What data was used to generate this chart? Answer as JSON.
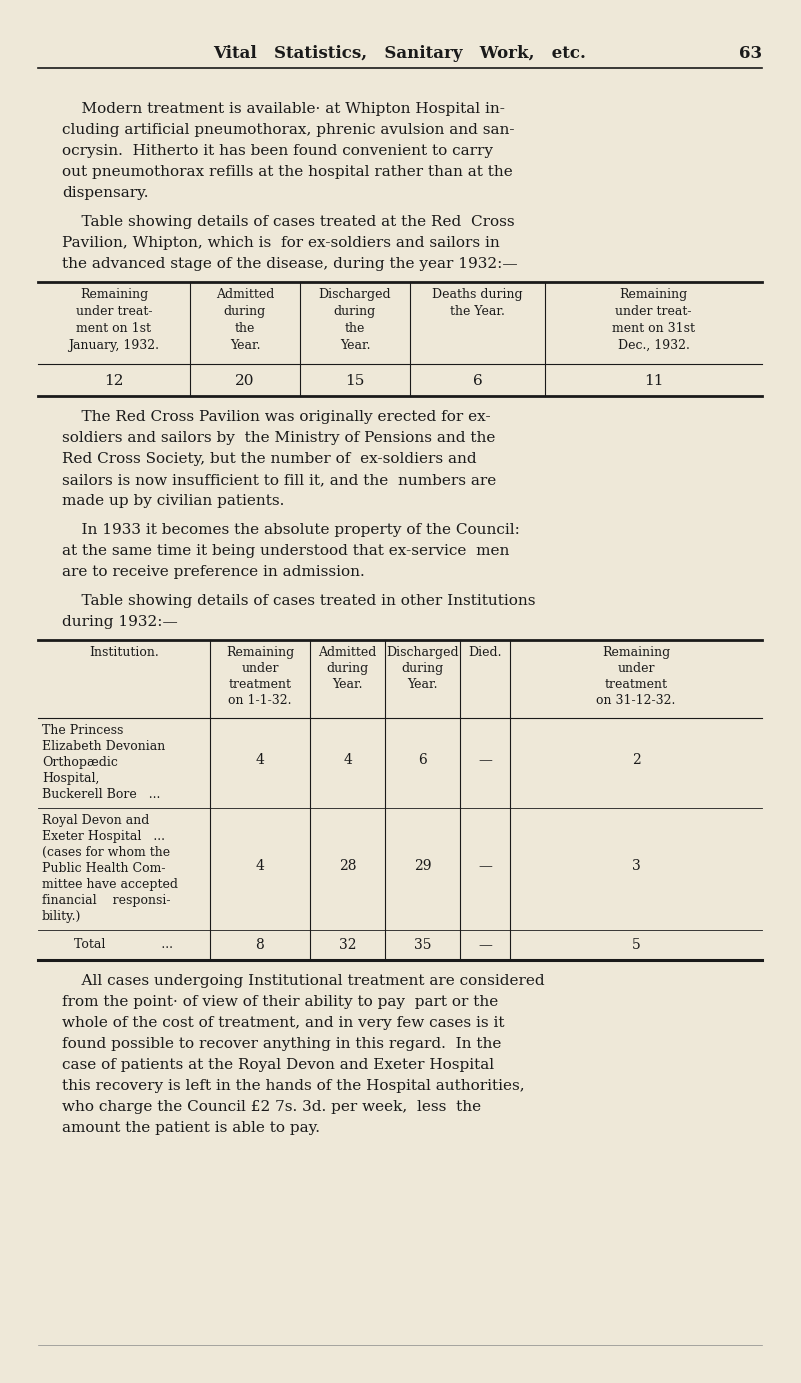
{
  "bg_color": "#eee8d8",
  "text_color": "#1a1a1a",
  "header_title": "Vital   Statistics,   Sanitary   Work,   etc.",
  "header_page": "63",
  "para1_lines": [
    "    Modern treatment is available· at Whipton Hospital in-",
    "cluding artificial pneumothorax, phrenic avulsion and san-",
    "ocrysin.  Hitherto it has been found convenient to carry",
    "out pneumothorax refills at the hospital rather than at the",
    "dispensary."
  ],
  "para2_lines": [
    "    Table showing details of cases treated at the Red  Cross",
    "Pavilion, Whipton, which is  for ex-soldiers and sailors in",
    "the advanced stage of the disease, during the year 1932:—"
  ],
  "t1_col_headers": [
    [
      "Remaining",
      "under treat-",
      "ment on 1st",
      "January, 1932."
    ],
    [
      "Admitted",
      "during",
      "the",
      "Year."
    ],
    [
      "Discharged",
      "during",
      "the",
      "Year."
    ],
    [
      "Deaths during",
      "the Year."
    ],
    [
      "Remaining",
      "under treat-",
      "ment on 31st",
      "Dec., 1932."
    ]
  ],
  "t1_data": [
    "12",
    "20",
    "15",
    "6",
    "11"
  ],
  "para3_lines": [
    "    The Red Cross Pavilion was originally erected for ex-",
    "soldiers and sailors by  the Ministry of Pensions and the",
    "Red Cross Society, but the number of  ex-soldiers and",
    "sailors is now insufficient to fill it, and the  numbers are",
    "made up by civilian patients."
  ],
  "para4_lines": [
    "    In 1933 it becomes the absolute property of the Council:",
    "at the same time it being understood that ex-service  men",
    "are to receive preference in admission."
  ],
  "para5_lines": [
    "    Table showing details of cases treated in other Institutions",
    "during 1932:—"
  ],
  "t2_col_headers": [
    [
      "Institution."
    ],
    [
      "Remaining",
      "under",
      "treatment",
      "on 1-1-32."
    ],
    [
      "Admitted",
      "during",
      "Year."
    ],
    [
      "Discharged",
      "during",
      "Year."
    ],
    [
      "Died."
    ],
    [
      "Remaining",
      "under",
      "treatment",
      "on 31-12-32."
    ]
  ],
  "t2_row1_col0": [
    "The Princess",
    "Elizabeth Devonian",
    "Orthopædic",
    "Hospital,",
    "Buckerell Bore   ..."
  ],
  "t2_row1_vals": [
    "4",
    "4",
    "6",
    "—",
    "2"
  ],
  "t2_row2_col0": [
    "Royal Devon and",
    "Exeter Hospital   ...",
    "(cases for whom the",
    "Public Health Com-",
    "mittee have accepted",
    "financial    responsi-",
    "bility.)"
  ],
  "t2_row2_vals": [
    "4",
    "28",
    "29",
    "—",
    "3"
  ],
  "t2_total_vals": [
    "8",
    "32",
    "35",
    "—",
    "5"
  ],
  "para6_lines": [
    "    All cases undergoing Institutional treatment are considered",
    "from the point· of view of their ability to pay  part or the",
    "whole of the cost of treatment, and in very few cases is it",
    "found possible to recover anything in this regard.  In the",
    "case of patients at the Royal Devon and Exeter Hospital",
    "this recovery is left in the hands of the Hospital authorities,",
    "who charge the Council £2 7s. 3d. per week,  less  the",
    "amount the patient is able to pay."
  ]
}
